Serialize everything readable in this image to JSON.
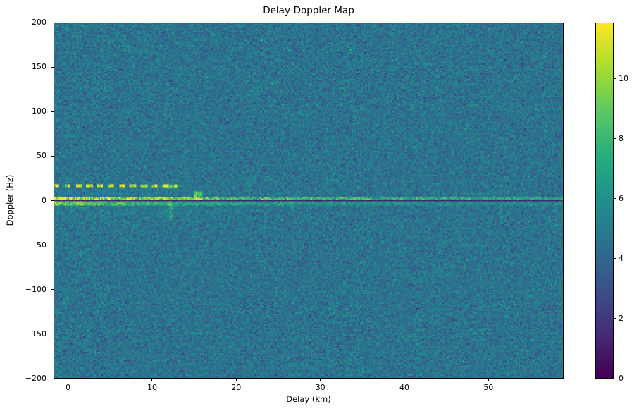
{
  "chart_data": {
    "type": "heatmap",
    "title": "Delay-Doppler Map",
    "xlabel": "Delay (km)",
    "ylabel": "Doppler (Hz)",
    "x_range": [
      -1.73,
      58.94
    ],
    "y_range": [
      -200,
      200
    ],
    "x_ticks": [
      0,
      10,
      20,
      30,
      40,
      50
    ],
    "x_tick_labels": [
      "0",
      "10",
      "20",
      "30",
      "40",
      "50"
    ],
    "y_ticks": [
      200,
      150,
      100,
      50,
      0,
      -50,
      -100,
      -150,
      -200
    ],
    "y_tick_labels": [
      "200",
      "150",
      "100",
      "50",
      "0",
      "−50",
      "−100",
      "−150",
      "−200"
    ],
    "colorbar": {
      "vmin": 0,
      "vmax": 11.88,
      "ticks": [
        0,
        2,
        4,
        6,
        8,
        10
      ],
      "tick_labels": [
        "0",
        "2",
        "4",
        "6",
        "8",
        "10"
      ],
      "colormap": "viridis"
    },
    "colormap_stops": [
      [
        68,
        1,
        84
      ],
      [
        71,
        44,
        122
      ],
      [
        59,
        81,
        139
      ],
      [
        44,
        113,
        142
      ],
      [
        33,
        144,
        141
      ],
      [
        39,
        173,
        129
      ],
      [
        92,
        200,
        99
      ],
      [
        170,
        220,
        50
      ],
      [
        253,
        231,
        37
      ]
    ],
    "grid": {
      "nx": 363,
      "ny": 253
    },
    "noise": {
      "mean": 4.55,
      "std": 0.78,
      "seed": 42
    },
    "legend": "none",
    "grid_lines": false,
    "features": [
      {
        "type": "wash",
        "delay": [
          -1.73,
          24
        ],
        "doppler": [
          -30,
          30
        ],
        "amp": 1.3,
        "decay_delay": 13,
        "decay_doppler": 15
      },
      {
        "type": "hband",
        "doppler": [
          1.0,
          4.5
        ],
        "amp0": 4.2,
        "amp1": 1.8,
        "decay": 22,
        "speckle": 0.6,
        "label": "bright ridge just above zero Doppler"
      },
      {
        "type": "hband",
        "doppler": [
          -5.8,
          -0.9
        ],
        "amp0": 3.0,
        "amp1": 0.8,
        "decay": 20,
        "speckle": 0.5,
        "label": "green band just below zero Doppler"
      },
      {
        "type": "dashed_hline",
        "doppler": [
          14.6,
          17.6
        ],
        "delay": [
          -1.73,
          12.9
        ],
        "base": 3.5,
        "amp": 7.0,
        "dash_km": 1.3,
        "duty": 0.55,
        "label": "dashed bright line near +16 Hz"
      },
      {
        "type": "blob",
        "delay_center": 12.1,
        "doppler_center": 16.2,
        "sigma_delay": 0.6,
        "sigma_doppler": 1.5,
        "amp": 7
      },
      {
        "type": "vstreak",
        "delay": [
          12.0,
          12.4
        ],
        "doppler": [
          -23,
          -0.5
        ],
        "amp": 2.2
      },
      {
        "type": "vstreak",
        "delay": [
          14.9,
          16.0
        ],
        "doppler": [
          0.5,
          9.5
        ],
        "amp": 5.0
      },
      {
        "type": "vstreak",
        "delay": [
          26.3,
          26.8
        ],
        "doppler": [
          -12,
          -0.5
        ],
        "amp": 1.3
      },
      {
        "type": "dark_hline",
        "doppler": [
          -0.85,
          0.85
        ],
        "value": 0.9,
        "jitter": 0.9,
        "label": "dark clutter-notch line at 0 Hz"
      }
    ]
  }
}
